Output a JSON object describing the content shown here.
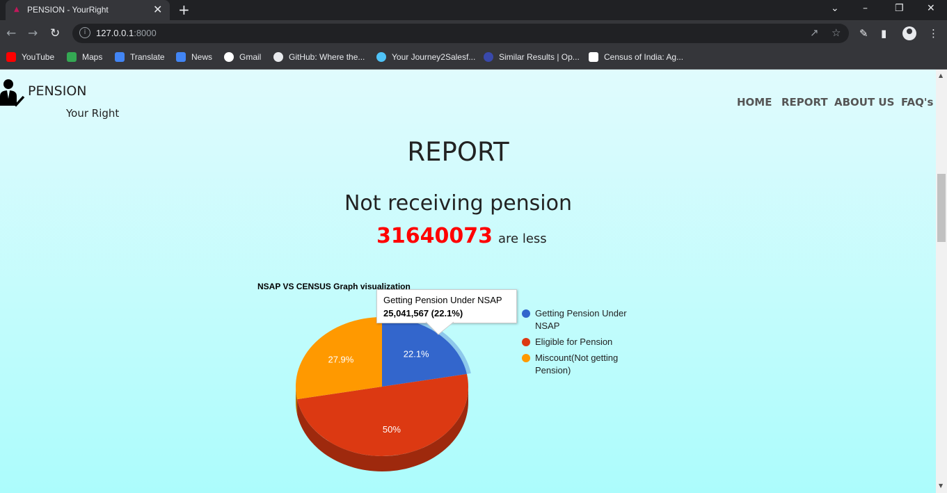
{
  "browser": {
    "tab_title": "PENSION - YourRight",
    "url_host": "127.0.0.1",
    "url_port": ":8000",
    "bookmarks": [
      {
        "label": "YouTube",
        "color": "#ff0000"
      },
      {
        "label": "Maps",
        "color": "#34a853"
      },
      {
        "label": "Translate",
        "color": "#4285f4"
      },
      {
        "label": "News",
        "color": "#4285f4"
      },
      {
        "label": "Gmail",
        "color": "#ffffff"
      },
      {
        "label": "GitHub: Where the...",
        "color": "#ffffff"
      },
      {
        "label": "Your Journey2Salesf...",
        "color": "#4fc3f7"
      },
      {
        "label": "Similar Results | Op...",
        "color": "#1a237e"
      },
      {
        "label": "Census of India: Ag...",
        "color": "#ffffff"
      }
    ]
  },
  "header": {
    "brand": "PENSION",
    "tagline": "Your Right",
    "nav": [
      "HOME",
      "REPORT",
      "ABOUT US",
      "FAQ's"
    ]
  },
  "report": {
    "heading": "REPORT",
    "subheading": "Not receiving pension",
    "count": "31640073",
    "count_suffix": "are less"
  },
  "chart_data": {
    "type": "pie",
    "title": "NSAP VS CENSUS Graph visualization",
    "slices": [
      {
        "name": "Getting Pension Under NSAP",
        "label": "22.1%",
        "percent": 22.1,
        "color": "#3366cc"
      },
      {
        "name": "Eligible for Pension",
        "label": "50%",
        "percent": 50,
        "color": "#dc3912"
      },
      {
        "name": "Miscount(Not getting Pension)",
        "label": "27.9%",
        "percent": 27.9,
        "color": "#ff9900"
      }
    ],
    "legend": [
      "Getting Pension Under NSAP",
      "Eligible for Pension",
      "Miscount(Not getting Pension)"
    ],
    "legend_position": "right",
    "tooltip": {
      "title": "Getting Pension Under NSAP",
      "value": "25,041,567 (22.1%)"
    }
  }
}
